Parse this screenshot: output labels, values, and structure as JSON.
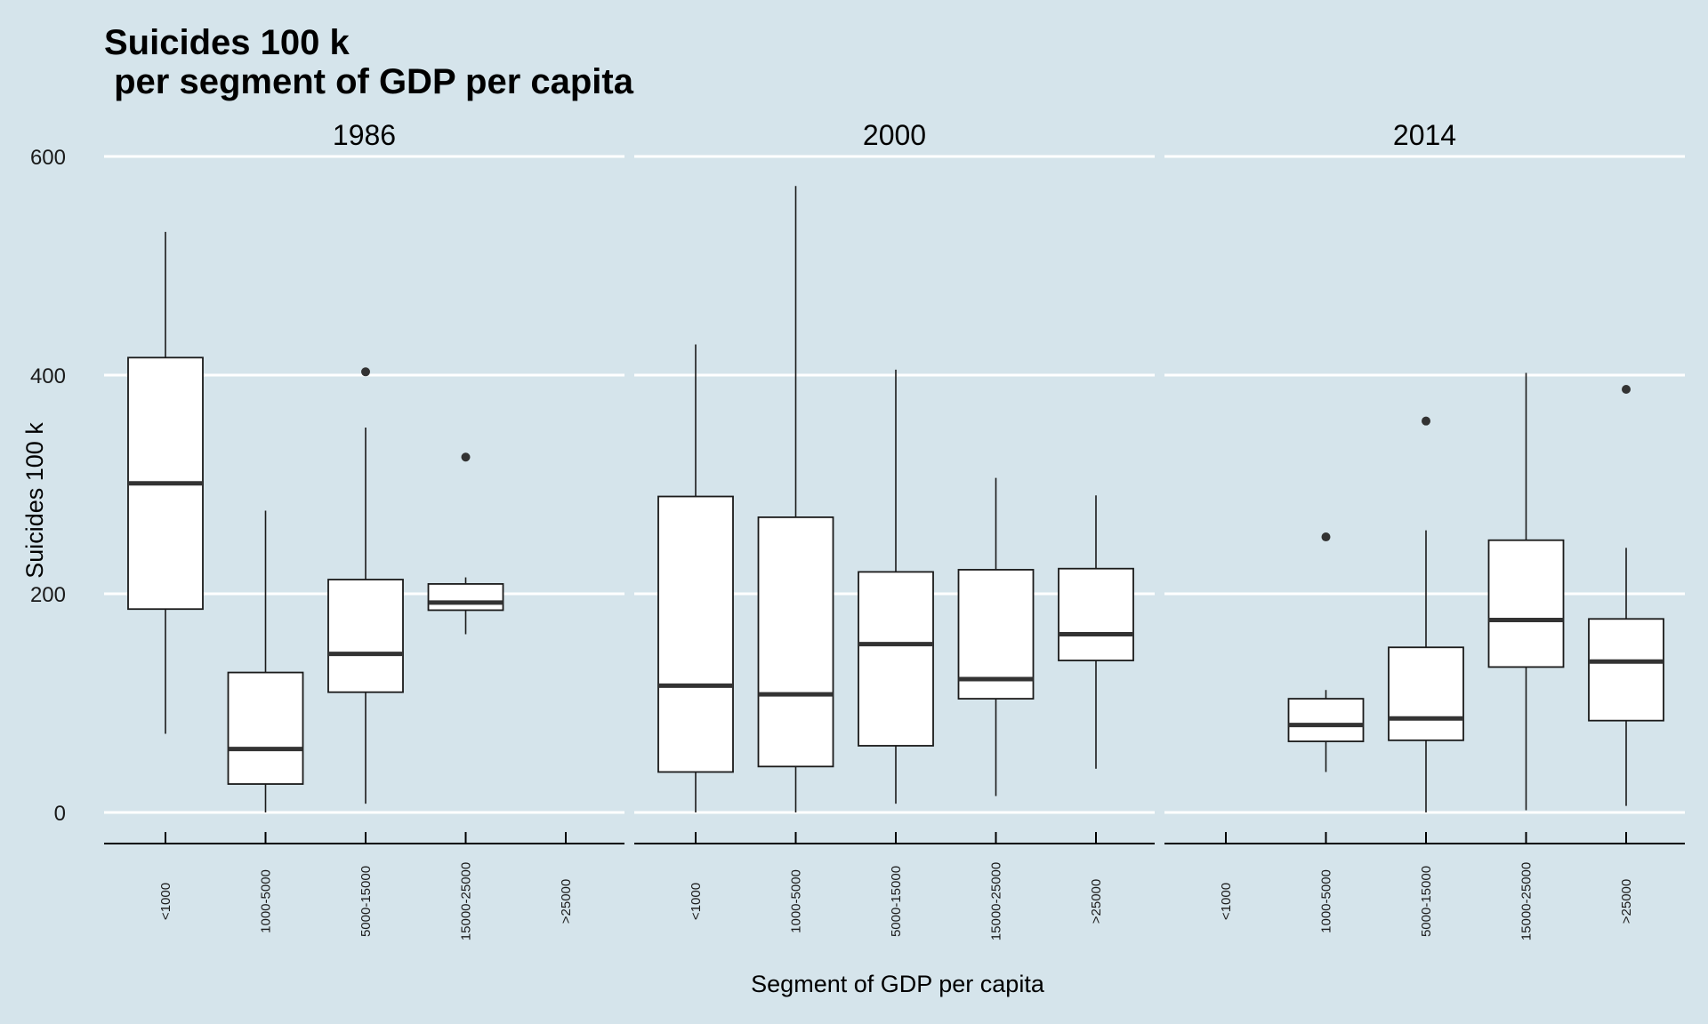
{
  "chart_data": {
    "type": "boxplot",
    "title_line1": "Suicides 100 k",
    "title_line2": " per segment of GDP per capita",
    "xlabel": "Segment of GDP per capita",
    "ylabel": "Suicides 100 k",
    "ylim": [
      -28,
      628
    ],
    "yticks": [
      0,
      200,
      400,
      600
    ],
    "categories": [
      "<1000",
      "1000-5000",
      "5000-15000",
      "15000-25000",
      ">25000"
    ],
    "grid": "horizontal major lines",
    "colors": {
      "background": "#d5e4eb",
      "box_fill": "#ffffff",
      "median": "#333333",
      "grid": "#ffffff"
    },
    "facets": [
      {
        "label": "1986",
        "boxes": [
          {
            "category": "<1000",
            "min": 72,
            "q1": 186,
            "median": 301,
            "q3": 416,
            "max": 531,
            "outliers": []
          },
          {
            "category": "1000-5000",
            "min": 0,
            "q1": 26,
            "median": 58,
            "q3": 128,
            "max": 276,
            "outliers": []
          },
          {
            "category": "5000-15000",
            "min": 8,
            "q1": 110,
            "median": 145,
            "q3": 213,
            "max": 352,
            "outliers": [
              403
            ]
          },
          {
            "category": "15000-25000",
            "min": 163,
            "q1": 185,
            "median": 192,
            "q3": 209,
            "max": 215,
            "outliers": [
              325
            ]
          }
        ]
      },
      {
        "label": "2000",
        "boxes": [
          {
            "category": "<1000",
            "min": 0,
            "q1": 37,
            "median": 116,
            "q3": 289,
            "max": 428,
            "outliers": []
          },
          {
            "category": "1000-5000",
            "min": 0,
            "q1": 42,
            "median": 108,
            "q3": 270,
            "max": 573,
            "outliers": []
          },
          {
            "category": "5000-15000",
            "min": 8,
            "q1": 61,
            "median": 154,
            "q3": 220,
            "max": 405,
            "outliers": []
          },
          {
            "category": "15000-25000",
            "min": 15,
            "q1": 104,
            "median": 122,
            "q3": 222,
            "max": 306,
            "outliers": []
          },
          {
            "category": ">25000",
            "min": 40,
            "q1": 139,
            "median": 163,
            "q3": 223,
            "max": 290,
            "outliers": []
          }
        ]
      },
      {
        "label": "2014",
        "boxes": [
          {
            "category": "1000-5000",
            "min": 37,
            "q1": 65,
            "median": 80,
            "q3": 104,
            "max": 112,
            "outliers": [
              252
            ]
          },
          {
            "category": "5000-15000",
            "min": 0,
            "q1": 66,
            "median": 86,
            "q3": 151,
            "max": 258,
            "outliers": [
              358
            ]
          },
          {
            "category": "15000-25000",
            "min": 2,
            "q1": 133,
            "median": 176,
            "q3": 249,
            "max": 402,
            "outliers": []
          },
          {
            "category": ">25000",
            "min": 6,
            "q1": 84,
            "median": 138,
            "q3": 177,
            "max": 242,
            "outliers": [
              387
            ]
          }
        ]
      }
    ]
  }
}
